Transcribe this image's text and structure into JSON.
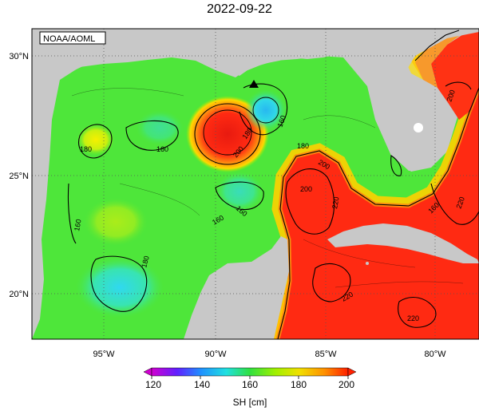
{
  "title": "2022-09-22",
  "credit": "NOAA/AOML",
  "axes": {
    "x_ticks": [
      "95°W",
      "90°W",
      "85°W",
      "80°W"
    ],
    "y_ticks": [
      "30°N",
      "25°N",
      "20°N"
    ]
  },
  "contour_labels": [
    "180",
    "160",
    "160",
    "180",
    "160",
    "200",
    "180",
    "160",
    "180",
    "200",
    "160",
    "160",
    "220",
    "220",
    "220",
    "220",
    "200",
    "200",
    "160"
  ],
  "colorbar": {
    "ticks": [
      "120",
      "140",
      "160",
      "180",
      "200"
    ],
    "label": "SH [cm]",
    "colors": [
      "#d000d0",
      "#6020ff",
      "#2090ff",
      "#20e0e0",
      "#30e040",
      "#a0f000",
      "#f0e000",
      "#ff9000",
      "#ff2000"
    ]
  },
  "colors": {
    "land": "#c8c8c8",
    "field_base": "#4ee63a",
    "warm_core": "#ff2a10",
    "cool_core": "#31d5ee"
  }
}
